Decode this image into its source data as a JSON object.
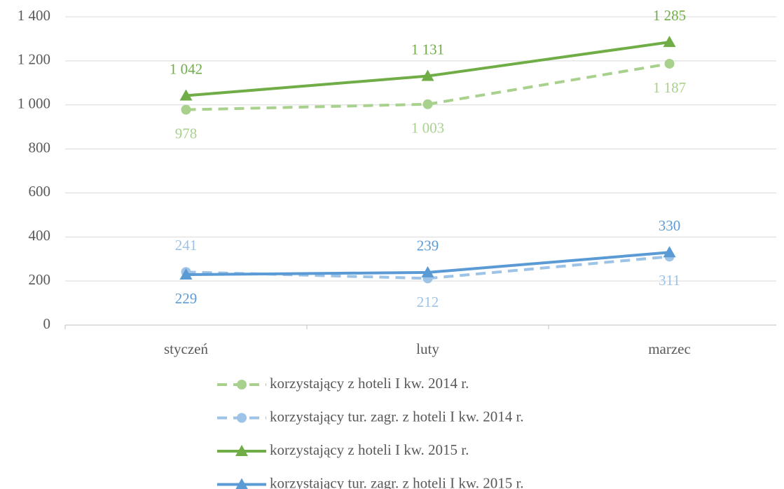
{
  "chart_data": {
    "type": "line",
    "categories": [
      "styczeń",
      "luty",
      "marzec"
    ],
    "series": [
      {
        "name": "korzystający z hoteli I kw. 2014 r.",
        "color": "#a9d18e",
        "line_style": "dashed",
        "marker": "circle",
        "values": [
          978,
          1003,
          1187
        ],
        "value_labels": [
          "978",
          "1 003",
          "1 187"
        ]
      },
      {
        "name": "korzystający tur. zagr. z hoteli I kw. 2014 r.",
        "color": "#9dc3e6",
        "line_style": "dashed",
        "marker": "circle",
        "values": [
          241,
          212,
          311
        ],
        "value_labels": [
          "241",
          "212",
          "311"
        ]
      },
      {
        "name": "korzystający z hoteli I kw. 2015 r.",
        "color": "#70ad47",
        "line_style": "solid",
        "marker": "triangle",
        "values": [
          1042,
          1131,
          1285
        ],
        "value_labels": [
          "1 042",
          "1 131",
          "1 285"
        ]
      },
      {
        "name": "korzystający tur. zagr. z hoteli I kw. 2015 r.",
        "color": "#5b9bd5",
        "line_style": "solid",
        "marker": "triangle",
        "values": [
          229,
          239,
          330
        ],
        "value_labels": [
          "229",
          "239",
          "330"
        ]
      }
    ],
    "ylim": [
      0,
      1400
    ],
    "yticks": [
      0,
      200,
      400,
      600,
      800,
      {
        "value": 1000,
        "label": "1 000"
      },
      {
        "value": 1200,
        "label": "1 200"
      },
      {
        "value": 1400,
        "label": "1 400"
      }
    ],
    "grid": true,
    "legend": "bottom"
  }
}
